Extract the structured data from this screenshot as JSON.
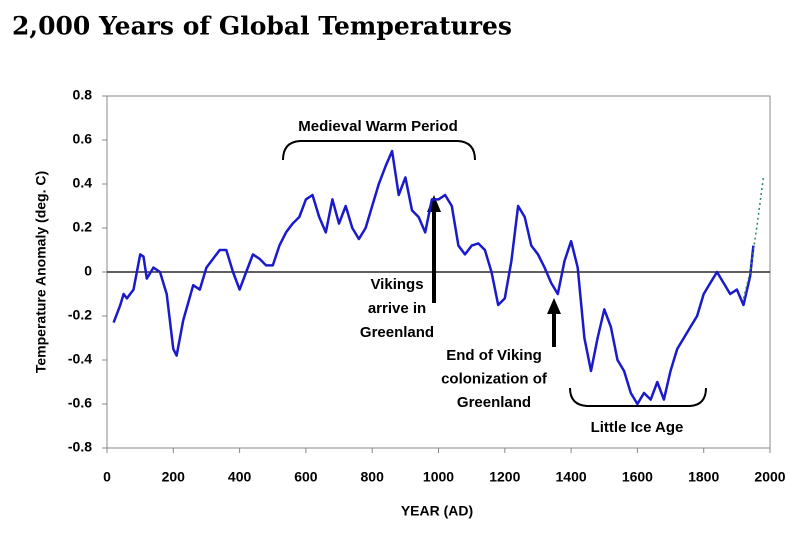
{
  "chart_data": {
    "type": "line",
    "title": "2,000 Years of Global Temperatures",
    "xlabel": "YEAR (AD)",
    "ylabel": "Temperature Anomaly (deg. C)",
    "xlim": [
      0,
      2000
    ],
    "xticks": [
      0,
      200,
      400,
      600,
      800,
      1000,
      1200,
      1400,
      1600,
      1800,
      2000
    ],
    "ylim": [
      -0.8,
      0.8
    ],
    "yticks": [
      0.8,
      0.6,
      0.4,
      0.2,
      0,
      -0.2,
      -0.4,
      -0.6,
      -0.8
    ],
    "grid": false,
    "series": [
      {
        "color": "#1a1acc",
        "style": "solid",
        "x": [
          20,
          40,
          50,
          60,
          80,
          100,
          110,
          120,
          140,
          160,
          180,
          200,
          210,
          230,
          260,
          280,
          300,
          320,
          340,
          360,
          380,
          400,
          420,
          440,
          460,
          480,
          500,
          520,
          540,
          560,
          580,
          600,
          620,
          640,
          660,
          680,
          700,
          720,
          740,
          760,
          780,
          800,
          820,
          840,
          860,
          880,
          900,
          920,
          940,
          960,
          980,
          1000,
          1020,
          1040,
          1060,
          1080,
          1100,
          1120,
          1140,
          1160,
          1180,
          1200,
          1220,
          1240,
          1260,
          1280,
          1300,
          1320,
          1340,
          1360,
          1380,
          1400,
          1420,
          1440,
          1460,
          1480,
          1500,
          1520,
          1540,
          1560,
          1580,
          1600,
          1620,
          1640,
          1660,
          1680,
          1700,
          1720,
          1740,
          1760,
          1780,
          1800,
          1820,
          1840,
          1860,
          1880,
          1900,
          1920,
          1940,
          1950
        ],
        "values": [
          -0.23,
          -0.15,
          -0.1,
          -0.12,
          -0.08,
          0.08,
          0.07,
          -0.03,
          0.02,
          0.0,
          -0.1,
          -0.35,
          -0.38,
          -0.22,
          -0.06,
          -0.08,
          0.02,
          0.06,
          0.1,
          0.1,
          0.0,
          -0.08,
          0.0,
          0.08,
          0.06,
          0.03,
          0.03,
          0.12,
          0.18,
          0.22,
          0.25,
          0.33,
          0.35,
          0.25,
          0.18,
          0.33,
          0.22,
          0.3,
          0.2,
          0.15,
          0.2,
          0.3,
          0.4,
          0.48,
          0.55,
          0.35,
          0.43,
          0.28,
          0.25,
          0.18,
          0.33,
          0.33,
          0.35,
          0.3,
          0.12,
          0.08,
          0.12,
          0.13,
          0.1,
          0.0,
          -0.15,
          -0.12,
          0.05,
          0.3,
          0.25,
          0.12,
          0.08,
          0.02,
          -0.05,
          -0.1,
          0.05,
          0.14,
          0.02,
          -0.3,
          -0.45,
          -0.3,
          -0.17,
          -0.25,
          -0.4,
          -0.45,
          -0.55,
          -0.6,
          -0.55,
          -0.58,
          -0.5,
          -0.58,
          -0.45,
          -0.35,
          -0.3,
          -0.25,
          -0.2,
          -0.1,
          -0.05,
          0.0,
          -0.05,
          -0.1,
          -0.08,
          -0.15,
          -0.02,
          0.12
        ]
      },
      {
        "color": "#2e8b57",
        "style": "dotted",
        "x": [
          1920,
          1940,
          1960,
          1980
        ],
        "values": [
          -0.12,
          0.0,
          0.2,
          0.43
        ]
      }
    ],
    "annotations": [
      {
        "text": [
          "Medieval Warm Period"
        ]
      },
      {
        "text": [
          "Vikings",
          "arrive in",
          "Greenland"
        ]
      },
      {
        "text": [
          "End of Viking",
          "colonization of",
          "Greenland"
        ]
      },
      {
        "text": [
          "Little Ice Age"
        ]
      }
    ]
  }
}
